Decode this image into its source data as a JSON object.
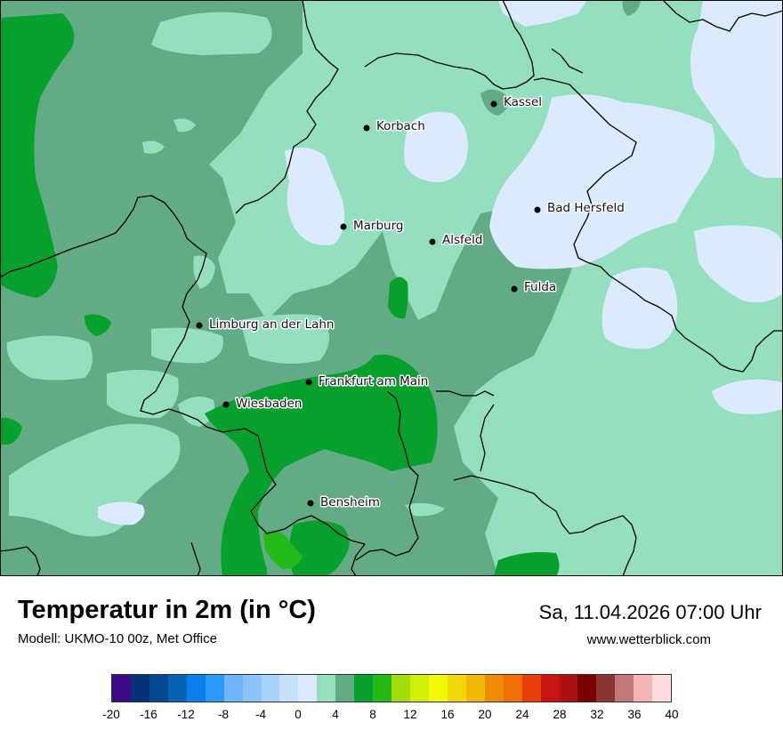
{
  "title": "Temperatur in 2m (in °C)",
  "model": "Modell: UKMO-10 00z, Met Office",
  "datetime": "Sa, 11.04.2026 07:00 Uhr",
  "website": "www.wetterblick.com",
  "cities": [
    {
      "name": "Kassel"
    },
    {
      "name": "Korbach"
    },
    {
      "name": "Bad Hersfeld"
    },
    {
      "name": "Marburg"
    },
    {
      "name": "Alsfeld"
    },
    {
      "name": "Fulda"
    },
    {
      "name": "Limburg an der Lahn"
    },
    {
      "name": "Frankfurt am Main"
    },
    {
      "name": "Wiesbaden"
    },
    {
      "name": "Bensheim"
    }
  ],
  "legend": {
    "colors": [
      "#3b0a8a",
      "#06327a",
      "#064892",
      "#0762b8",
      "#0780eb",
      "#2b98fa",
      "#6eb5fa",
      "#8cc4fa",
      "#a8d2fa",
      "#c7e1fc",
      "#dbeafd",
      "#94dfbd",
      "#62ab85",
      "#06a02c",
      "#24b818",
      "#a3dc06",
      "#d0ef06",
      "#f2f806",
      "#f1d806",
      "#f1b806",
      "#f18a06",
      "#f07006",
      "#e83e0a",
      "#c71414",
      "#ae1010",
      "#7a0000",
      "#8c3535",
      "#c27878",
      "#f2b4b4",
      "#fcdcdc"
    ],
    "ticks": [
      "-20",
      "-16",
      "-12",
      "-8",
      "-4",
      "0",
      "4",
      "8",
      "12",
      "16",
      "20",
      "24",
      "28",
      "32",
      "36",
      "40"
    ]
  }
}
